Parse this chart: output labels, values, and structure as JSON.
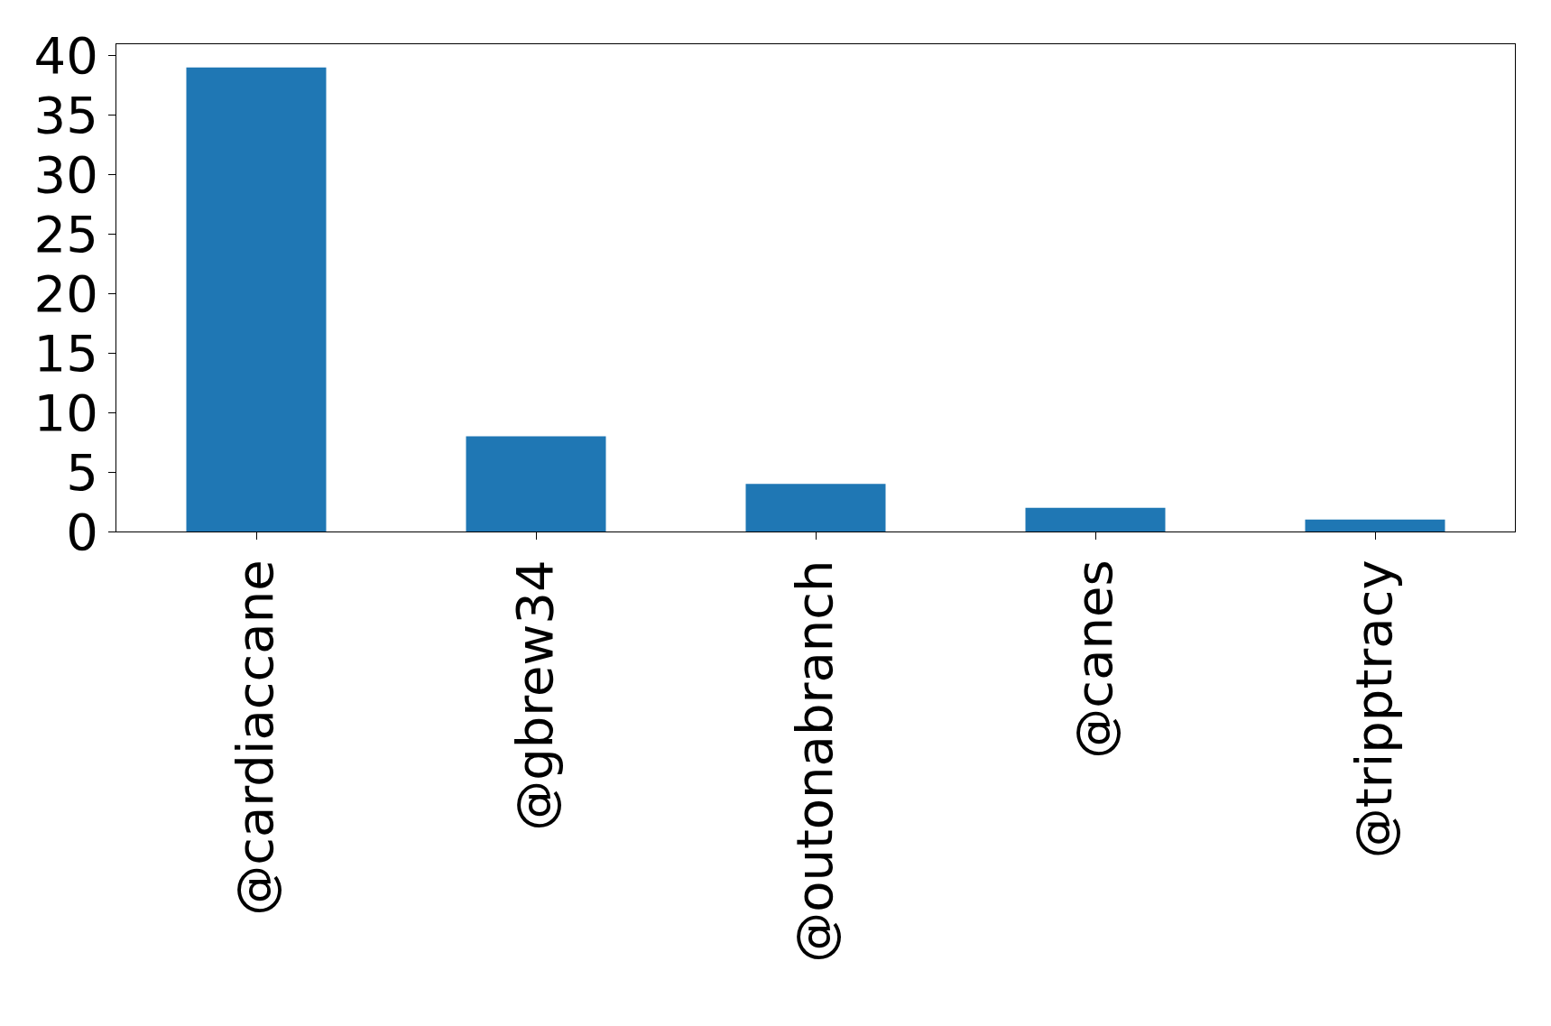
{
  "chart_data": {
    "type": "bar",
    "categories": [
      "@cardiaccane",
      "@gbrew34",
      "@outonabranch",
      "@canes",
      "@tripptracy"
    ],
    "values": [
      39,
      8,
      4,
      2,
      1
    ],
    "color": "#1f77b4",
    "ylim": [
      0,
      40.95
    ],
    "yticks": [
      0,
      5,
      10,
      15,
      20,
      25,
      30,
      35,
      40
    ],
    "legend": false
  }
}
